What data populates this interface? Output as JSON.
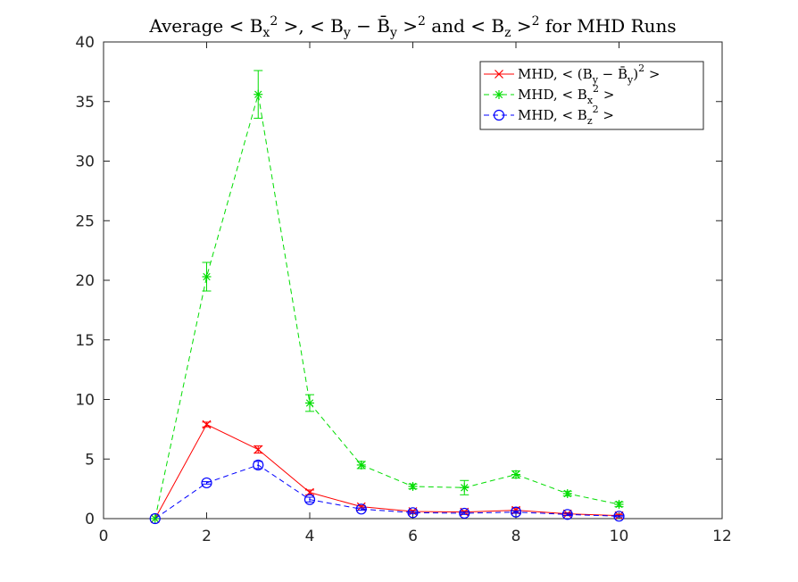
{
  "chart_data": {
    "type": "line",
    "title": "Average < B_x^2 >, < B_y − B̄_y >^2 and < B_z >^2 for MHD Runs",
    "xlabel": "",
    "ylabel": "",
    "xlim": [
      0,
      12
    ],
    "ylim": [
      0,
      40
    ],
    "xticks": [
      0,
      2,
      4,
      6,
      8,
      10,
      12
    ],
    "yticks": [
      0,
      5,
      10,
      15,
      20,
      25,
      30,
      35,
      40
    ],
    "grid": false,
    "legend_position": "top-right",
    "series": [
      {
        "name": "MHD, < (B_y − B̄_y)^2 >",
        "color": "#ff0000",
        "line_style": "solid",
        "marker": "x",
        "x": [
          1,
          2,
          3,
          4,
          5,
          6,
          7,
          8,
          9,
          10
        ],
        "y": [
          0.0,
          7.9,
          5.8,
          2.2,
          1.0,
          0.6,
          0.55,
          0.7,
          0.4,
          0.25
        ],
        "error": [
          0.0,
          0.2,
          0.3,
          0.2,
          0.1,
          0.1,
          0.1,
          0.2,
          0.1,
          0.1
        ]
      },
      {
        "name": "MHD, < B_x^2 >",
        "color": "#00dd00",
        "line_style": "dashed",
        "marker": "star",
        "x": [
          1,
          2,
          3,
          4,
          5,
          6,
          7,
          8,
          9,
          10
        ],
        "y": [
          0.0,
          20.3,
          35.6,
          9.7,
          4.5,
          2.7,
          2.6,
          3.7,
          2.1,
          1.2
        ],
        "error": [
          0.0,
          1.2,
          2.0,
          0.7,
          0.3,
          0.2,
          0.6,
          0.3,
          0.2,
          0.2
        ]
      },
      {
        "name": "MHD, < B_z^2 >",
        "color": "#0000ff",
        "line_style": "dashed",
        "marker": "circle",
        "x": [
          1,
          2,
          3,
          4,
          5,
          6,
          7,
          8,
          9,
          10
        ],
        "y": [
          0.0,
          3.0,
          4.5,
          1.6,
          0.8,
          0.5,
          0.45,
          0.55,
          0.35,
          0.2
        ],
        "error": [
          0.0,
          0.1,
          0.3,
          0.2,
          0.1,
          0.1,
          0.1,
          0.1,
          0.1,
          0.05
        ]
      }
    ]
  }
}
